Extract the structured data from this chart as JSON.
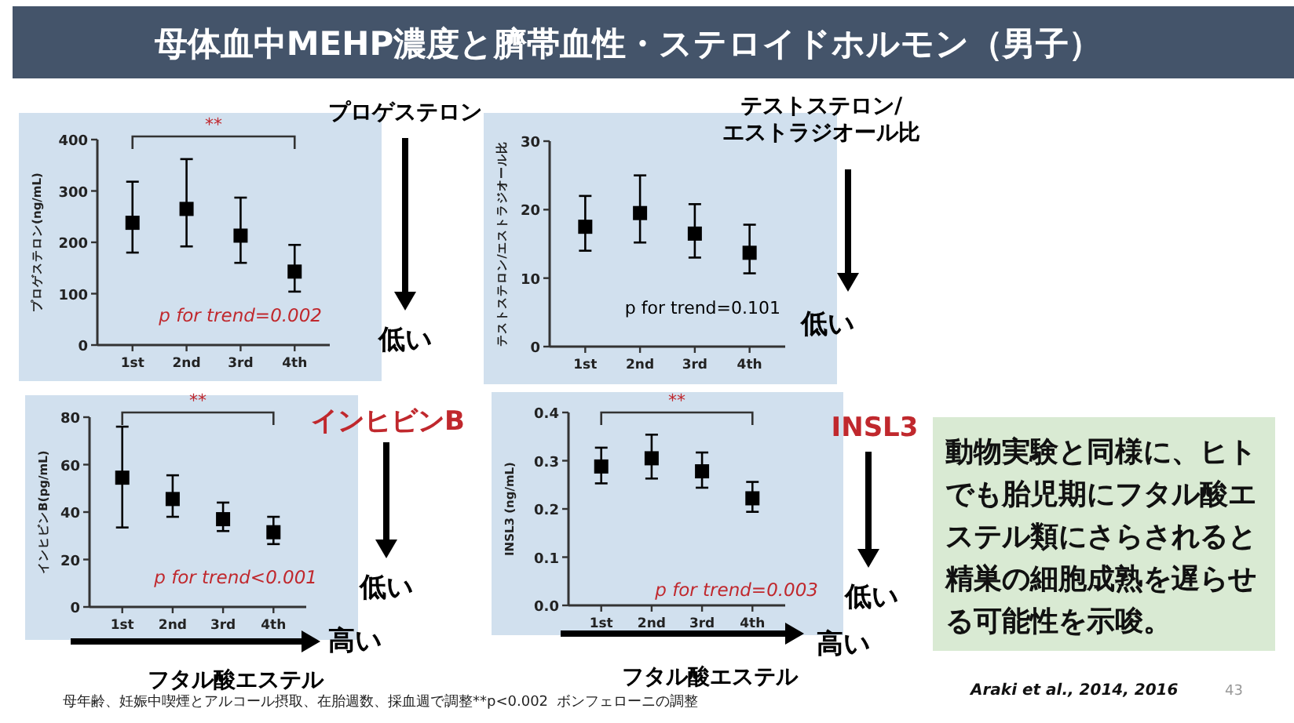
{
  "chart_data": [
    {
      "type": "scatter",
      "ylabel": "プロゲステロン(ng/mL)",
      "categories": [
        "1st",
        "2nd",
        "3rd",
        "4th"
      ],
      "marker": "square",
      "grid": false,
      "ylim": [
        0,
        400
      ],
      "yticks": [
        0,
        100,
        200,
        300,
        400
      ],
      "series": [
        {
          "color": "#000000",
          "values": [
            238,
            265,
            213,
            143
          ],
          "errors": [
            [
              180,
              318
            ],
            [
              192,
              362
            ],
            [
              160,
              287
            ],
            [
              104,
              195
            ]
          ]
        }
      ],
      "annotations": [
        "プロゲステロン",
        "**",
        "p for trend=0.002",
        "低い"
      ]
    },
    {
      "type": "scatter",
      "ylabel": "テストステロン/エストラジオール比",
      "categories": [
        "1st",
        "2nd",
        "3rd",
        "4th"
      ],
      "marker": "square",
      "grid": false,
      "ylim": [
        0,
        30
      ],
      "yticks": [
        0,
        10,
        20,
        30
      ],
      "series": [
        {
          "color": "#000000",
          "values": [
            17.5,
            19.5,
            16.5,
            13.7
          ],
          "errors": [
            [
              14,
              22
            ],
            [
              15.2,
              25
            ],
            [
              13,
              20.8
            ],
            [
              10.7,
              17.8
            ]
          ]
        }
      ],
      "annotations": [
        "テストステロン/\nエストラジオール比",
        "p for trend=0.101",
        "低い"
      ]
    },
    {
      "type": "scatter",
      "ylabel": "インヒビンB(pg/mL)",
      "categories": [
        "1st",
        "2nd",
        "3rd",
        "4th"
      ],
      "marker": "square",
      "grid": false,
      "ylim": [
        0,
        80
      ],
      "yticks": [
        0,
        20,
        40,
        60,
        80
      ],
      "series": [
        {
          "color": "#000000",
          "values": [
            54.5,
            45.5,
            37,
            31.5
          ],
          "errors": [
            [
              33.5,
              76
            ],
            [
              38,
              55.5
            ],
            [
              32,
              44
            ],
            [
              26.5,
              38
            ]
          ]
        }
      ],
      "annotations": [
        "インヒビンB",
        "**",
        "p for trend<0.001",
        "低い",
        "高い",
        "フタル酸エステル"
      ]
    },
    {
      "type": "scatter",
      "ylabel": "INSL3 (ng/mL)",
      "categories": [
        "1st",
        "2nd",
        "3rd",
        "4th"
      ],
      "marker": "square",
      "grid": false,
      "ylim": [
        0,
        0.4
      ],
      "yticks": [
        {
          "value": 0,
          "label": "0.0"
        },
        0.1,
        0.2,
        0.3,
        0.4
      ],
      "series": [
        {
          "color": "#000000",
          "values": [
            0.288,
            0.305,
            0.278,
            0.222
          ],
          "errors": [
            [
              0.253,
              0.327
            ],
            [
              0.263,
              0.354
            ],
            [
              0.244,
              0.317
            ],
            [
              0.194,
              0.256
            ]
          ]
        }
      ],
      "annotations": [
        "INSL3",
        "**",
        "p for trend=0.003",
        "低い",
        "高い",
        "フタル酸エステル"
      ]
    },
    {
      "type": "other",
      "title": "母体血中MEHP濃度と臍帯血性・ステロイドホルモン（男子）",
      "annotations": [
        "動物実験と同様に、ヒトでも胎児期にフタル酸エステル類にさらされると精巣の細胞成熟を遅らせる可能性を示唆。",
        "母年齢、妊娠中喫煙とアルコール摂取、在胎週数、採血週で調整**p<0.002  ボンフェローニの調整",
        "Araki et al., 2014, 2016",
        "43"
      ]
    }
  ]
}
